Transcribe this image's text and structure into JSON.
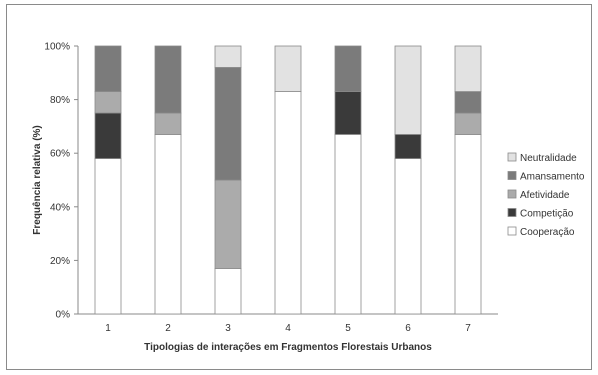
{
  "chart_data": {
    "type": "bar",
    "stacked": true,
    "categories": [
      "1",
      "2",
      "3",
      "4",
      "5",
      "6",
      "7"
    ],
    "series": [
      {
        "name": "Cooperação",
        "color": "#ffffff",
        "values": [
          58,
          67,
          17,
          83,
          67,
          58,
          67
        ]
      },
      {
        "name": "Competição",
        "color": "#3a3a3a",
        "values": [
          17,
          0,
          0,
          0,
          16,
          9,
          0
        ]
      },
      {
        "name": "Afetividade",
        "color": "#ababab",
        "values": [
          8,
          8,
          33,
          0,
          0,
          0,
          8
        ]
      },
      {
        "name": "Amansamento",
        "color": "#7b7b7b",
        "values": [
          17,
          25,
          42,
          0,
          17,
          0,
          8
        ]
      },
      {
        "name": "Neutralidade",
        "color": "#e2e2e2",
        "values": [
          0,
          0,
          8,
          17,
          0,
          33,
          17
        ]
      }
    ],
    "title": "",
    "xlabel": "Tipologias de interações em Fragmentos Florestais Urbanos",
    "ylabel": "Frequência relativa (%)",
    "ylim": [
      0,
      100
    ],
    "yticks": [
      "0%",
      "20%",
      "40%",
      "60%",
      "80%",
      "100%"
    ],
    "grid": false,
    "legend_position": "right",
    "legend_order": [
      "Neutralidade",
      "Amansamento",
      "Afetividade",
      "Competição",
      "Cooperação"
    ]
  }
}
